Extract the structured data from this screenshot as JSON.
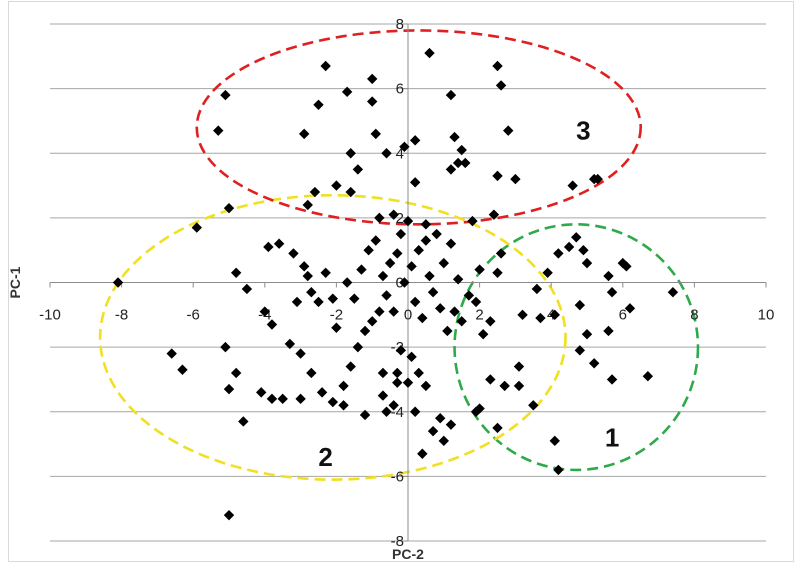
{
  "chart_data": {
    "type": "scatter",
    "xlabel": "PC-2",
    "ylabel": "PC-1",
    "xlim": [
      -10,
      10
    ],
    "ylim": [
      -8,
      8
    ],
    "xticks": [
      "-10",
      "-8",
      "-6",
      "-4",
      "-2",
      "0",
      "2",
      "4",
      "6",
      "8",
      "10"
    ],
    "yticks": [
      "8",
      "6",
      "4",
      "2",
      "0",
      "-2",
      "-4",
      "-6",
      "-8"
    ],
    "grid": "horizontal",
    "marker": "diamond",
    "marker_color": "#000000",
    "clusters": [
      {
        "label": "1",
        "color": "#2eaa4a",
        "center": [
          4.7,
          -2.0
        ],
        "radii": [
          3.4,
          3.8
        ]
      },
      {
        "label": "2",
        "color": "#f0e020",
        "center": [
          -2.1,
          -1.7
        ],
        "radii": [
          6.5,
          4.4
        ]
      },
      {
        "label": "3",
        "color": "#e02020",
        "center": [
          0.3,
          4.8
        ],
        "radii": [
          6.2,
          3.0
        ]
      }
    ],
    "points": [
      [
        -8.1,
        0.0
      ],
      [
        -5.9,
        1.7
      ],
      [
        -5.3,
        4.7
      ],
      [
        -5.1,
        5.8
      ],
      [
        -5.0,
        2.3
      ],
      [
        -4.8,
        0.3
      ],
      [
        -4.5,
        -0.2
      ],
      [
        -4.6,
        -4.3
      ],
      [
        -5.1,
        -2.0
      ],
      [
        -5.0,
        -3.3
      ],
      [
        -4.8,
        -2.8
      ],
      [
        -5.0,
        -7.2
      ],
      [
        -6.6,
        -2.2
      ],
      [
        -6.3,
        -2.7
      ],
      [
        -4.1,
        -3.4
      ],
      [
        -3.8,
        -3.6
      ],
      [
        -3.5,
        -3.6
      ],
      [
        -3.0,
        -3.6
      ],
      [
        -4.0,
        -0.9
      ],
      [
        -3.8,
        -1.3
      ],
      [
        -3.3,
        -1.9
      ],
      [
        -3.1,
        -0.6
      ],
      [
        -3.0,
        -2.2
      ],
      [
        -2.7,
        -2.8
      ],
      [
        -2.4,
        -3.4
      ],
      [
        -2.1,
        -3.7
      ],
      [
        -1.8,
        -3.2
      ],
      [
        -1.6,
        -2.6
      ],
      [
        -1.4,
        -2.0
      ],
      [
        -1.2,
        -1.5
      ],
      [
        -1.0,
        -1.2
      ],
      [
        -0.8,
        -0.9
      ],
      [
        -1.8,
        -3.8
      ],
      [
        -1.2,
        -4.1
      ],
      [
        -0.6,
        -4.0
      ],
      [
        -0.2,
        -2.1
      ],
      [
        0.1,
        -2.3
      ],
      [
        0.3,
        -2.8
      ],
      [
        -0.3,
        -2.8
      ],
      [
        0.0,
        -3.1
      ],
      [
        0.5,
        -3.2
      ],
      [
        -0.7,
        -2.8
      ],
      [
        -3.9,
        1.1
      ],
      [
        -3.6,
        1.2
      ],
      [
        -3.2,
        0.9
      ],
      [
        -2.9,
        0.5
      ],
      [
        -2.8,
        0.2
      ],
      [
        -2.7,
        -0.3
      ],
      [
        -2.5,
        -0.6
      ],
      [
        -2.3,
        0.3
      ],
      [
        -2.1,
        -0.5
      ],
      [
        -2.0,
        -1.4
      ],
      [
        -1.7,
        0.0
      ],
      [
        -1.5,
        -0.5
      ],
      [
        -1.3,
        0.4
      ],
      [
        -1.1,
        1.0
      ],
      [
        -0.9,
        1.3
      ],
      [
        -0.7,
        0.2
      ],
      [
        -0.6,
        -0.4
      ],
      [
        -0.5,
        0.6
      ],
      [
        -0.4,
        -0.9
      ],
      [
        -0.3,
        0.9
      ],
      [
        -0.2,
        1.5
      ],
      [
        -0.1,
        0.0
      ],
      [
        0.1,
        0.5
      ],
      [
        0.2,
        -0.6
      ],
      [
        0.3,
        1.0
      ],
      [
        0.4,
        -1.1
      ],
      [
        0.5,
        1.3
      ],
      [
        0.6,
        0.2
      ],
      [
        0.7,
        -0.3
      ],
      [
        0.8,
        1.5
      ],
      [
        0.9,
        -0.8
      ],
      [
        1.0,
        0.6
      ],
      [
        1.1,
        -1.5
      ],
      [
        1.2,
        1.2
      ],
      [
        1.3,
        -0.9
      ],
      [
        1.4,
        0.1
      ],
      [
        1.5,
        -1.2
      ],
      [
        1.7,
        -0.4
      ],
      [
        0.0,
        1.9
      ],
      [
        0.5,
        1.8
      ],
      [
        -0.4,
        2.1
      ],
      [
        -0.8,
        2.0
      ],
      [
        1.9,
        -0.6
      ],
      [
        2.0,
        0.4
      ],
      [
        2.1,
        -1.6
      ],
      [
        2.3,
        -1.2
      ],
      [
        2.5,
        0.3
      ],
      [
        2.6,
        0.9
      ],
      [
        -2.0,
        3.0
      ],
      [
        -2.6,
        2.8
      ],
      [
        -2.8,
        2.4
      ],
      [
        -1.6,
        2.8
      ],
      [
        -1.4,
        3.5
      ],
      [
        -1.6,
        4.0
      ],
      [
        -2.9,
        4.6
      ],
      [
        -2.5,
        5.5
      ],
      [
        -2.3,
        6.7
      ],
      [
        -1.7,
        5.9
      ],
      [
        -1.0,
        6.3
      ],
      [
        -1.0,
        5.6
      ],
      [
        -0.9,
        4.6
      ],
      [
        -0.6,
        4.0
      ],
      [
        -0.1,
        4.2
      ],
      [
        0.2,
        4.4
      ],
      [
        0.2,
        3.1
      ],
      [
        0.6,
        7.1
      ],
      [
        1.2,
        5.8
      ],
      [
        1.3,
        4.5
      ],
      [
        1.5,
        4.1
      ],
      [
        1.4,
        3.7
      ],
      [
        1.6,
        3.7
      ],
      [
        1.2,
        3.5
      ],
      [
        2.5,
        6.7
      ],
      [
        2.6,
        6.1
      ],
      [
        2.8,
        4.7
      ],
      [
        2.5,
        3.3
      ],
      [
        3.0,
        3.2
      ],
      [
        2.4,
        2.1
      ],
      [
        1.8,
        1.9
      ],
      [
        4.6,
        3.0
      ],
      [
        5.2,
        3.2
      ],
      [
        5.3,
        3.2
      ],
      [
        -0.3,
        -3.1
      ],
      [
        3.5,
        -3.8
      ],
      [
        2.0,
        -3.9
      ],
      [
        2.3,
        -3.0
      ],
      [
        2.7,
        -3.2
      ],
      [
        3.1,
        -3.2
      ],
      [
        3.1,
        -2.6
      ],
      [
        3.2,
        -1.0
      ],
      [
        3.6,
        -0.2
      ],
      [
        3.9,
        0.3
      ],
      [
        4.2,
        0.9
      ],
      [
        4.5,
        1.1
      ],
      [
        4.7,
        1.4
      ],
      [
        4.9,
        1.0
      ],
      [
        5.0,
        0.6
      ],
      [
        4.8,
        -0.7
      ],
      [
        5.0,
        -1.6
      ],
      [
        4.8,
        -2.1
      ],
      [
        5.2,
        -2.5
      ],
      [
        5.6,
        -1.5
      ],
      [
        5.7,
        -0.3
      ],
      [
        5.6,
        0.2
      ],
      [
        6.0,
        0.6
      ],
      [
        6.1,
        0.5
      ],
      [
        6.2,
        -0.8
      ],
      [
        7.4,
        -0.3
      ],
      [
        6.7,
        -2.9
      ],
      [
        5.7,
        -3.0
      ],
      [
        4.1,
        -4.9
      ],
      [
        4.2,
        -5.8
      ],
      [
        2.5,
        -4.5
      ],
      [
        3.7,
        -1.1
      ],
      [
        4.1,
        -1.0
      ],
      [
        -0.7,
        -3.5
      ],
      [
        -0.4,
        -3.8
      ],
      [
        0.7,
        -4.6
      ],
      [
        1.2,
        -4.4
      ],
      [
        1.0,
        -4.9
      ],
      [
        0.4,
        -5.3
      ],
      [
        1.9,
        -4.0
      ],
      [
        0.9,
        -4.2
      ],
      [
        0.2,
        -4.0
      ]
    ]
  }
}
